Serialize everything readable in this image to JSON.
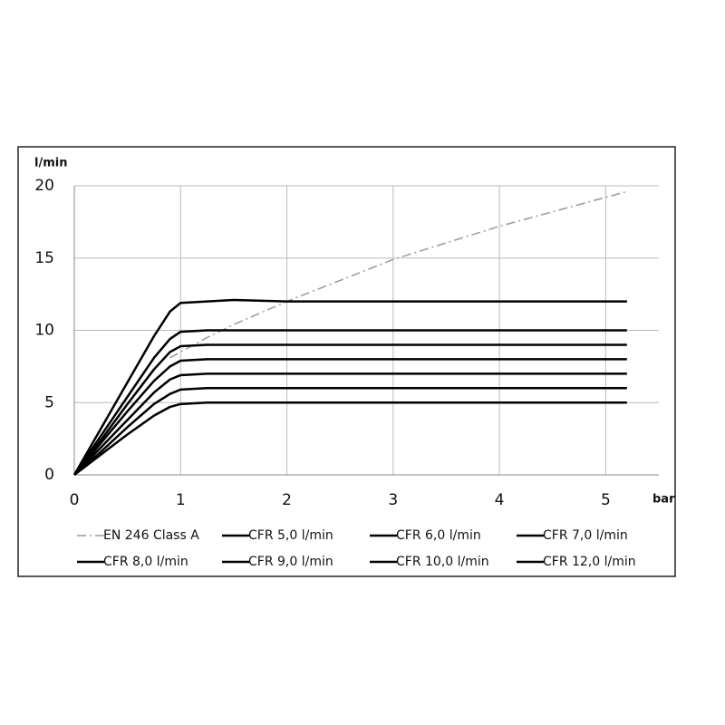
{
  "chart_data": {
    "type": "line",
    "y_label": "l/min",
    "x_label": "bar",
    "x": [
      0,
      0.25,
      0.5,
      0.75,
      0.9,
      1,
      1.25,
      1.5,
      2,
      3,
      4,
      5,
      5.2
    ],
    "series": [
      {
        "name": "EN 246 Class A",
        "color": "#999999",
        "dash": "dashdot",
        "values": [
          null,
          null,
          null,
          null,
          8.1,
          8.5,
          9.5,
          10.4,
          12.0,
          14.9,
          17.2,
          19.2,
          19.6
        ]
      },
      {
        "name": "CFR 5,0 l/min",
        "color": "#000000",
        "values": [
          0,
          1.4,
          2.8,
          4.1,
          4.7,
          4.9,
          5,
          5,
          5,
          5,
          5,
          5,
          5
        ]
      },
      {
        "name": "CFR 6,0 l/min",
        "color": "#000000",
        "values": [
          0,
          1.6,
          3.3,
          4.9,
          5.6,
          5.9,
          6,
          6,
          6,
          6,
          6,
          6,
          6
        ]
      },
      {
        "name": "CFR 7,0 l/min",
        "color": "#000000",
        "values": [
          0,
          1.9,
          3.8,
          5.7,
          6.6,
          6.9,
          7,
          7,
          7,
          7,
          7,
          7,
          7
        ]
      },
      {
        "name": "CFR 8,0 l/min",
        "color": "#000000",
        "values": [
          0,
          2.2,
          4.4,
          6.5,
          7.5,
          7.9,
          8,
          8,
          8,
          8,
          8,
          8,
          8
        ]
      },
      {
        "name": "CFR 9,0 l/min",
        "color": "#000000",
        "values": [
          0,
          2.4,
          4.9,
          7.3,
          8.5,
          8.9,
          9,
          9,
          9,
          9,
          9,
          9,
          9
        ]
      },
      {
        "name": "CFR 10,0 l/min",
        "color": "#000000",
        "values": [
          0,
          2.7,
          5.4,
          8.1,
          9.4,
          9.9,
          10,
          10,
          10,
          10,
          10,
          10,
          10
        ]
      },
      {
        "name": "CFR 12,0 l/min",
        "color": "#000000",
        "values": [
          0,
          3.2,
          6.4,
          9.6,
          11.3,
          11.9,
          12,
          12.1,
          12,
          12,
          12,
          12,
          12
        ]
      }
    ],
    "xlim": [
      0,
      5.5
    ],
    "xticks": [
      0,
      1,
      2,
      3,
      4,
      5
    ],
    "ylim": [
      0,
      20
    ],
    "yticks": [
      0,
      5,
      10,
      15,
      20
    ],
    "grid": true
  }
}
